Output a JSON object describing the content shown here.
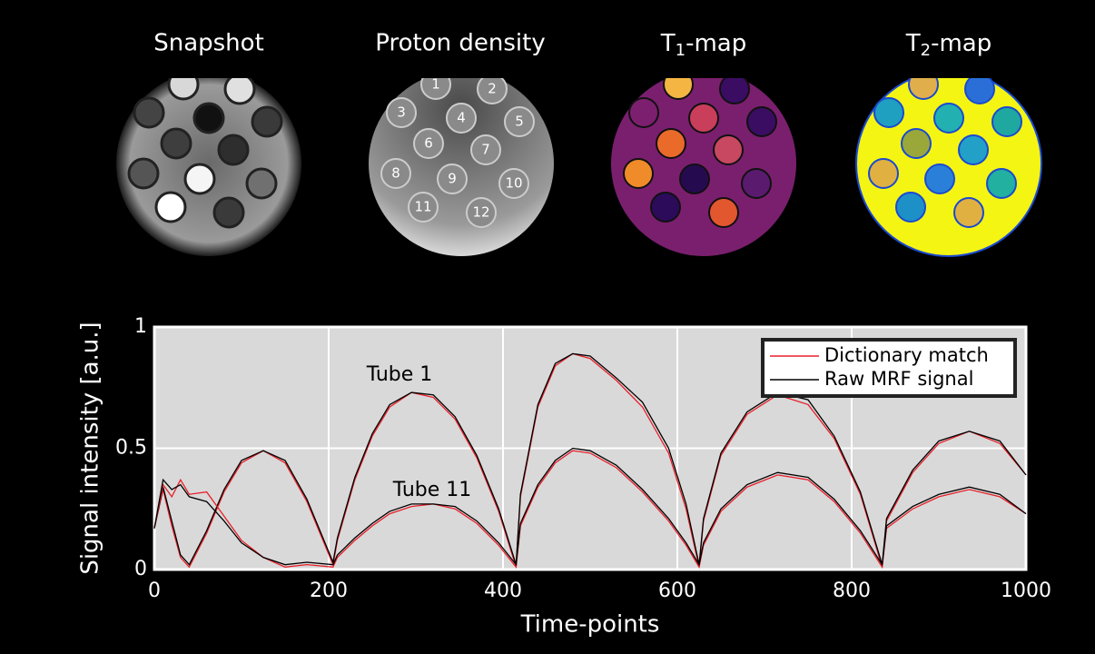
{
  "panels": [
    {
      "title": "Snapshot"
    },
    {
      "title": "Proton density"
    },
    {
      "title_parts": [
        "T",
        "1",
        "-map"
      ]
    },
    {
      "title_parts": [
        "T",
        "2",
        "-map"
      ]
    }
  ],
  "tube_labels": [
    "1",
    "2",
    "3",
    "4",
    "5",
    "6",
    "7",
    "8",
    "9",
    "10",
    "11",
    "12"
  ],
  "chart_data": {
    "type": "line",
    "xlabel": "Time-points",
    "ylabel": "Signal intensity [a.u.]",
    "annotations": [
      "Tube 1",
      "Tube 11"
    ],
    "x": [
      0,
      10,
      20,
      30,
      40,
      60,
      80,
      100,
      125,
      150,
      175,
      205,
      210,
      230,
      250,
      270,
      295,
      320,
      345,
      370,
      395,
      415,
      420,
      440,
      460,
      480,
      500,
      530,
      560,
      590,
      610,
      625,
      630,
      650,
      680,
      715,
      750,
      780,
      810,
      835,
      840,
      870,
      900,
      935,
      970,
      1000
    ],
    "series": [
      {
        "name": "Dictionary match",
        "color": "#e8202a",
        "values": [
          0.17,
          0.33,
          0.18,
          0.05,
          0.01,
          0.15,
          0.32,
          0.44,
          0.49,
          0.44,
          0.28,
          0.02,
          0.12,
          0.37,
          0.55,
          0.67,
          0.73,
          0.71,
          0.62,
          0.46,
          0.24,
          0.01,
          0.3,
          0.67,
          0.84,
          0.89,
          0.87,
          0.78,
          0.67,
          0.48,
          0.25,
          0.01,
          0.2,
          0.47,
          0.64,
          0.72,
          0.68,
          0.54,
          0.31,
          0.01,
          0.2,
          0.4,
          0.52,
          0.57,
          0.52,
          0.39
        ]
      },
      {
        "name": "Raw MRF signal",
        "color": "#000000",
        "values": [
          0.17,
          0.34,
          0.2,
          0.06,
          0.02,
          0.16,
          0.33,
          0.45,
          0.49,
          0.45,
          0.29,
          0.03,
          0.13,
          0.38,
          0.56,
          0.68,
          0.73,
          0.72,
          0.63,
          0.47,
          0.25,
          0.02,
          0.31,
          0.68,
          0.85,
          0.89,
          0.88,
          0.79,
          0.69,
          0.5,
          0.27,
          0.02,
          0.21,
          0.48,
          0.65,
          0.73,
          0.7,
          0.55,
          0.32,
          0.02,
          0.21,
          0.41,
          0.53,
          0.57,
          0.53,
          0.39
        ]
      },
      {
        "name": "Dictionary match",
        "color": "#e8202a",
        "values": [
          0.17,
          0.35,
          0.3,
          0.37,
          0.31,
          0.32,
          0.22,
          0.12,
          0.05,
          0.01,
          0.02,
          0.01,
          0.05,
          0.12,
          0.18,
          0.23,
          0.26,
          0.27,
          0.25,
          0.19,
          0.1,
          0.01,
          0.18,
          0.34,
          0.44,
          0.49,
          0.48,
          0.42,
          0.32,
          0.2,
          0.1,
          0.01,
          0.1,
          0.24,
          0.34,
          0.39,
          0.37,
          0.28,
          0.15,
          0.01,
          0.17,
          0.25,
          0.3,
          0.33,
          0.3,
          0.23
        ]
      },
      {
        "name": "Raw MRF signal",
        "color": "#000000",
        "values": [
          0.17,
          0.37,
          0.33,
          0.35,
          0.3,
          0.28,
          0.2,
          0.11,
          0.05,
          0.02,
          0.03,
          0.02,
          0.06,
          0.13,
          0.19,
          0.24,
          0.27,
          0.27,
          0.26,
          0.2,
          0.11,
          0.02,
          0.19,
          0.35,
          0.45,
          0.5,
          0.49,
          0.43,
          0.33,
          0.21,
          0.11,
          0.02,
          0.11,
          0.25,
          0.35,
          0.4,
          0.38,
          0.29,
          0.16,
          0.02,
          0.18,
          0.26,
          0.31,
          0.34,
          0.31,
          0.23
        ]
      }
    ],
    "xlim": [
      0,
      1000
    ],
    "xticks": [
      0,
      200,
      400,
      600,
      800,
      1000
    ],
    "ylim": [
      0,
      1
    ],
    "yticks": [
      0,
      0.5,
      1
    ],
    "grid": true,
    "legend": "upper right"
  }
}
